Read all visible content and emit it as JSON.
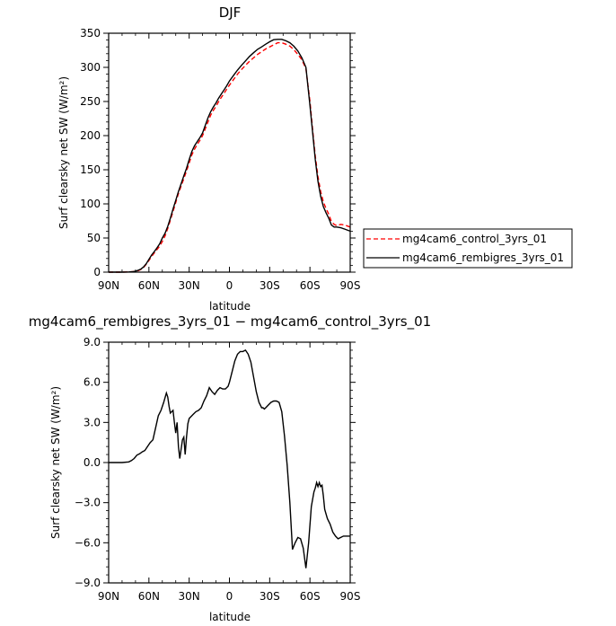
{
  "chart_data": [
    {
      "type": "line",
      "title": "DJF",
      "xlabel": "latitude",
      "ylabel": "Surf clearsky net SW (W/m²)",
      "x_ticks": [
        "90N",
        "60N",
        "30N",
        "0",
        "30S",
        "60S",
        "90S"
      ],
      "y_ticks": [
        "0",
        "50",
        "100",
        "150",
        "200",
        "250",
        "300",
        "350"
      ],
      "xlim": [
        90,
        -90
      ],
      "ylim": [
        0,
        350
      ],
      "grid": false,
      "legend": "right",
      "series": [
        {
          "name": "mg4cam6_control_3yrs_01",
          "color": "#ff0000",
          "dash": "dashed",
          "x": [
            90,
            80,
            75,
            72,
            70,
            68,
            66,
            64,
            62,
            60,
            58,
            56,
            54,
            52,
            50,
            48,
            46,
            44,
            42,
            40,
            38,
            36,
            34,
            32,
            30,
            28,
            26,
            24,
            22,
            20,
            18,
            16,
            14,
            12,
            10,
            8,
            6,
            4,
            2,
            0,
            -3,
            -6,
            -9,
            -12,
            -15,
            -18,
            -21,
            -24,
            -27,
            -30,
            -33,
            -36,
            -39,
            -42,
            -45,
            -48,
            -51,
            -54,
            -57,
            -60,
            -62,
            -64,
            -66,
            -68,
            -70,
            -72,
            -74,
            -76,
            -78,
            -80,
            -83,
            -86,
            -90
          ],
          "values": [
            0,
            0,
            0.2,
            0.6,
            1.2,
            2.3,
            4,
            7,
            11.5,
            17,
            23,
            28,
            33,
            38,
            45,
            53,
            64,
            76,
            89,
            102,
            115,
            126,
            137,
            148,
            160,
            172,
            180,
            187,
            193,
            200,
            210,
            220,
            230,
            237,
            243,
            250,
            256,
            262,
            268,
            274,
            282,
            290,
            297,
            303,
            309,
            314,
            319,
            323,
            327,
            330,
            333,
            336,
            336,
            334,
            331,
            326,
            319,
            311,
            298,
            250,
            208,
            170,
            140,
            118,
            103,
            93,
            85,
            74,
            70,
            68,
            70,
            69,
            66
          ]
        },
        {
          "name": "mg4cam6_rembigres_3yrs_01",
          "color": "#000000",
          "dash": "solid",
          "x": [
            90,
            80,
            75,
            72,
            70,
            68,
            66,
            64,
            62,
            60,
            58,
            56,
            54,
            52,
            50,
            48,
            46,
            44,
            42,
            40,
            38,
            36,
            34,
            32,
            30,
            28,
            26,
            24,
            22,
            20,
            18,
            16,
            14,
            12,
            10,
            8,
            6,
            4,
            2,
            0,
            -3,
            -6,
            -9,
            -12,
            -15,
            -18,
            -21,
            -24,
            -27,
            -30,
            -33,
            -36,
            -39,
            -42,
            -45,
            -48,
            -51,
            -54,
            -57,
            -60,
            -62,
            -64,
            -66,
            -68,
            -70,
            -72,
            -74,
            -76,
            -78,
            -80,
            -83,
            -86,
            -90
          ],
          "values": [
            0,
            0,
            0.2,
            0.7,
            1.4,
            2.7,
            4.5,
            7.6,
            12.3,
            18.5,
            25,
            30,
            35.5,
            41.5,
            50,
            57,
            67,
            79,
            92.5,
            105,
            118,
            129.5,
            141,
            152,
            165,
            177,
            185,
            191,
            197,
            204,
            215,
            226,
            235,
            242,
            248,
            255,
            261,
            267,
            273,
            280,
            288,
            296,
            303,
            309.5,
            316,
            321.5,
            326.5,
            330,
            334,
            337.5,
            340.5,
            341,
            341,
            339,
            336,
            331,
            324,
            314,
            300,
            244,
            204,
            165,
            133,
            111,
            96,
            87,
            79,
            69,
            66,
            66,
            65,
            63,
            60
          ]
        }
      ]
    },
    {
      "type": "line",
      "title": "mg4cam6_rembigres_3yrs_01 − mg4cam6_control_3yrs_01",
      "xlabel": "latitude",
      "ylabel": "Surf clearsky net SW (W/m²)",
      "x_ticks": [
        "90N",
        "60N",
        "30N",
        "0",
        "30S",
        "60S",
        "90S"
      ],
      "y_ticks": [
        "−9.0",
        "−6.0",
        "−3.0",
        "0.0",
        "3.0",
        "6.0",
        "9.0"
      ],
      "xlim": [
        90,
        -90
      ],
      "ylim": [
        -9,
        9
      ],
      "grid": false,
      "series": [
        {
          "color": "#000000",
          "dash": "solid",
          "x": [
            90,
            80,
            75,
            73,
            71,
            69,
            67,
            65,
            63,
            61,
            59,
            57,
            55,
            53,
            51,
            49,
            47,
            46,
            45,
            44,
            42,
            41,
            40,
            39,
            38,
            37,
            35,
            34,
            33,
            32,
            31,
            30,
            29,
            27,
            25,
            23,
            21,
            19,
            17,
            15,
            13,
            11,
            9,
            7,
            5,
            3,
            1,
            0,
            -2,
            -4,
            -6,
            -8,
            -10,
            -12,
            -14,
            -16,
            -18,
            -20,
            -22,
            -24,
            -25,
            -26,
            -27,
            -29,
            -31,
            -33,
            -35,
            -37,
            -39,
            -41,
            -43,
            -45,
            -47,
            -49,
            -51,
            -53,
            -55,
            -57,
            -59,
            -61,
            -63,
            -64,
            -65,
            -66,
            -67,
            -68,
            -69,
            -70,
            -71,
            -73,
            -75,
            -77,
            -79,
            -81,
            -83,
            -85,
            -87,
            -89,
            -90
          ],
          "values": [
            0,
            0,
            0.05,
            0.15,
            0.3,
            0.55,
            0.65,
            0.8,
            0.9,
            1.2,
            1.5,
            1.7,
            2.6,
            3.5,
            3.9,
            4.5,
            5.2,
            4.9,
            4.2,
            3.7,
            3.9,
            3.0,
            2.2,
            3.0,
            1.2,
            0.3,
            1.7,
            1.9,
            0.6,
            1.9,
            2.9,
            3.3,
            3.4,
            3.6,
            3.8,
            3.9,
            4.1,
            4.6,
            5.0,
            5.6,
            5.3,
            5.1,
            5.4,
            5.6,
            5.5,
            5.5,
            5.7,
            6.0,
            6.8,
            7.6,
            8.1,
            8.3,
            8.3,
            8.4,
            8.1,
            7.5,
            6.4,
            5.3,
            4.5,
            4.1,
            4.1,
            4.0,
            4.1,
            4.3,
            4.5,
            4.6,
            4.6,
            4.5,
            3.8,
            2.0,
            -0.2,
            -3.0,
            -6.5,
            -6.0,
            -5.6,
            -5.7,
            -6.4,
            -7.9,
            -6.0,
            -3.3,
            -2.2,
            -1.9,
            -1.5,
            -1.8,
            -1.5,
            -1.8,
            -1.7,
            -2.5,
            -3.5,
            -4.2,
            -4.6,
            -5.2,
            -5.5,
            -5.7,
            -5.6,
            -5.5,
            -5.5,
            -5.5,
            -5.5
          ],
          "values_note_unused": null
        }
      ]
    }
  ]
}
